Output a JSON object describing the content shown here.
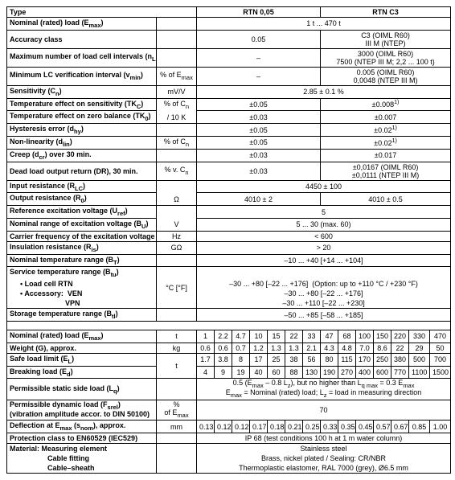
{
  "header": {
    "type": "Type",
    "col1": "RTN 0,05",
    "col2": "RTN C3"
  },
  "main_rows": [
    {
      "label": "Nominal (rated) load (E<sub>max</sub>)",
      "unit": "",
      "val": "1 t ... 470 t",
      "span": 2
    },
    {
      "label": "Accuracy class",
      "unit": "",
      "c1": "0.05",
      "c2": "C3 (OIML R60)<br>III M (NTEP)"
    },
    {
      "label": "Maximum number of load cell intervals (n<sub>LC</sub>)",
      "unit": "",
      "c1": "–",
      "c2": "3000 (OIML R60)<br>7500 (NTEP III M; 2,2 ... 100 t)"
    },
    {
      "label": "Minimum LC verification interval (v<sub>min</sub>)",
      "unit": "% of E<sub>max</sub>",
      "c1": "–",
      "c2": "0.005 (OIML R60)<br>0,0048 (NTEP III M)"
    },
    {
      "label": "Sensitivity (C<sub>n</sub>)",
      "unit": "mV/V",
      "val": "2.85 ± 0.1 %",
      "span": 2
    },
    {
      "label": "Temperature effect on sensitivity (TK<sub>C</sub>)",
      "unit": "% of C<sub>n</sub>",
      "c1": "±0.05",
      "c2": "±0.008<sup>1)</sup>",
      "ub": true
    },
    {
      "label": "Temperature effect on zero balance (TK<sub>0</sub>)",
      "unit": "/ 10 K",
      "c1": "±0.03",
      "c2": "±0.007",
      "ut": true
    },
    {
      "label": "Hysteresis error (d<sub>hy</sub>)",
      "unit": "",
      "c1": "±0.05",
      "c2": "±0.02<sup>1)</sup>"
    },
    {
      "label": "Non-linearity (d<sub>lin</sub>)",
      "unit": "% of C<sub>n</sub>",
      "c1": "±0.05",
      "c2": "±0.02<sup>1)</sup>"
    },
    {
      "label": "Creep (d<sub>cr</sub>) over 30 min.",
      "unit": "",
      "c1": "±0.03",
      "c2": "±0.017"
    },
    {
      "label": "Dead load output return (DR), 30 min.",
      "unit": "% v. C<sub>n</sub>",
      "c1": "±0.03",
      "c2": "±0,0167 (OIML R60)<br>±0,0111 (NTEP III M)"
    },
    {
      "label": "Input resistance (R<sub>LC</sub>)",
      "unit": "",
      "val": "4450 ± 100",
      "span": 2,
      "ub": true
    },
    {
      "label": "Output resistance (R<sub>0</sub>)",
      "unit": "Ω",
      "c1": "4010 ± 2",
      "c2": "4010 ± 0.5",
      "ut": true
    },
    {
      "label": "Reference excitation voltage (U<sub>ref</sub>)",
      "unit": "",
      "val": "5",
      "span": 2,
      "ub": true
    },
    {
      "label": "Nominal range of excitation voltage (B<sub>U</sub>)",
      "unit": "V",
      "val": "5 ... 30 (max. 60)",
      "span": 2,
      "ut": true
    },
    {
      "label": "Carrier frequency of the excitation voltage",
      "unit": "Hz",
      "val": "< 600",
      "span": 2
    },
    {
      "label": "Insulation resistance (R<sub>is</sub>)",
      "unit": "GΩ",
      "val": "> 20",
      "span": 2
    },
    {
      "label": "Nominal temperature range (B<sub>T</sub>)",
      "unit": "",
      "val": "–10 ... +40 [+14 ... +104]",
      "span": 2
    }
  ],
  "service_temp": {
    "label": "Service temperature range (B<sub>tu</sub>)",
    "unit": "°C [°F]",
    "r1": {
      "l": "• Load cell RTN",
      "v": "–30 ... +80 [–22 ... +176]&nbsp;&nbsp;(Option: up to +110 °C / +230 °F)"
    },
    "r2": {
      "l": "• Accessory:&nbsp;&nbsp;VEN",
      "v": "–30 ... +80 [–22 ... +176]"
    },
    "r3": {
      "l": "VPN",
      "v": "–30 ... +110 [–22 ... +230]"
    }
  },
  "storage": {
    "label": "Storage temperature range (B<sub>tl</sub>)",
    "val": "–50 ... +85 [–58 ... +185]"
  },
  "grid_header": [
    "1",
    "2.2",
    "4.7",
    "10",
    "15",
    "22",
    "33",
    "47",
    "68",
    "100",
    "150",
    "220",
    "330",
    "470"
  ],
  "grid_rows": [
    {
      "label": "Nominal (rated) load (E<sub>max</sub>)",
      "unit": "t"
    },
    {
      "label": "Weight (G), approx.",
      "unit": "kg",
      "v": [
        "0.6",
        "0.6",
        "0.7",
        "1.2",
        "1.3",
        "1.3",
        "2.1",
        "4.3",
        "4.8",
        "7.0",
        "8.6",
        "22",
        "29",
        "50"
      ]
    },
    {
      "label": "Safe load limit (E<sub>L</sub>)",
      "unit": "t",
      "v": [
        "1.7",
        "3.8",
        "8",
        "17",
        "25",
        "38",
        "56",
        "80",
        "115",
        "170",
        "250",
        "380",
        "500",
        "700"
      ],
      "ub": true
    },
    {
      "label": "Breaking load (E<sub>d</sub>)",
      "unit": "",
      "v": [
        "4",
        "9",
        "19",
        "40",
        "60",
        "88",
        "130",
        "190",
        "270",
        "400",
        "600",
        "770",
        "1100",
        "1500"
      ],
      "ut": true
    }
  ],
  "side_load": {
    "label": "Permissible static side load (L<sub>q</sub>)",
    "val": "0.5 (E<sub>max</sub> – 0.8 L<sub>z</sub>), but no higher than L<sub>q max</sub> = 0.3 E<sub>max</sub><br>E<sub>max</sub> = Nominal (rated) load; L<sub>z</sub> = load in measuring direction"
  },
  "dyn_load": {
    "label": "Permissible dynamic load (F<sub>srel</sub>)<br>(vibration amplitude accor. to DIN 50100)",
    "unit": "%<br>of E<sub>max</sub>",
    "val": "70"
  },
  "deflection": {
    "label": "Deflection at E<sub>max</sub> (s<sub>nom</sub>), approx.",
    "unit": "mm",
    "v": [
      "0.13",
      "0.12",
      "0.12",
      "0.17",
      "0.18",
      "0.21",
      "0.25",
      "0.33",
      "0.35",
      "0.45",
      "0.57",
      "0.67",
      "0.85",
      "1.00"
    ]
  },
  "protection": {
    "label": "Protection class to EN60529 (IEC529)",
    "val": "IP 68 (test conditions 100 h at 1 m water column)"
  },
  "material": {
    "label": "Material: Measuring element",
    "l2": "Cable fitting",
    "l3": "Cable–sheath",
    "v1": "Stainless steel",
    "v2": "Brass, nickel plated / Sealing: CR/NBR",
    "v3": "Thermoplastic elastomer, RAL 7000 (grey), Ø6.5 mm"
  }
}
